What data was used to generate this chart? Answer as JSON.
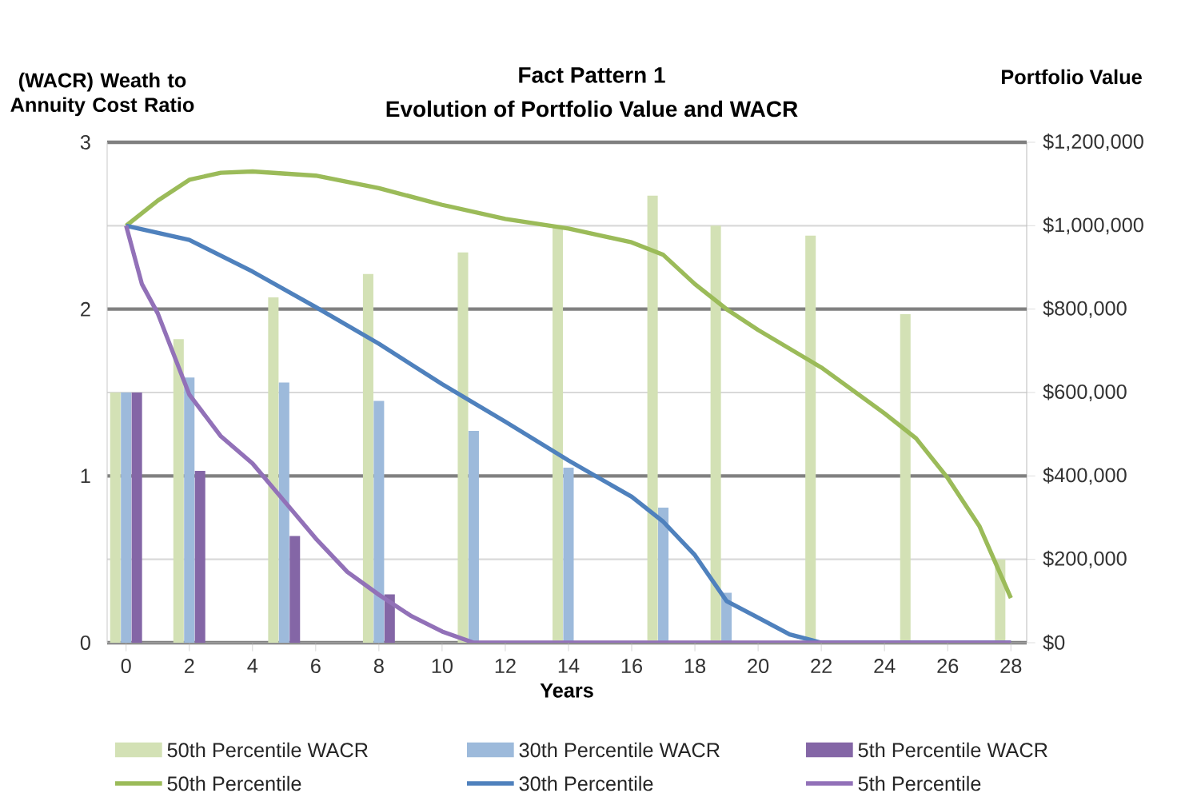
{
  "chart_data": {
    "type": "bar",
    "title": "Fact Pattern 1",
    "subtitle": "Evolution of Portfolio Value and WACR",
    "xlabel": "Years",
    "ylabel": "(WACR) Weath to Annuity Cost Ratio",
    "y2label": "Portfolio Value",
    "xlim": [
      -0.6,
      28.5
    ],
    "xticks": [
      0,
      2,
      4,
      6,
      8,
      10,
      12,
      14,
      16,
      18,
      20,
      22,
      24,
      26,
      28
    ],
    "ylim": [
      0,
      3
    ],
    "yticks": [
      0,
      1,
      2,
      3
    ],
    "y2lim": [
      0,
      1200000
    ],
    "y2ticks": [
      {
        "value": 0,
        "label": "$0"
      },
      {
        "value": 200000,
        "label": "$200,000"
      },
      {
        "value": 400000,
        "label": "$400,000"
      },
      {
        "value": 600000,
        "label": "$600,000"
      },
      {
        "value": 800000,
        "label": "$800,000"
      },
      {
        "value": 1000000,
        "label": "$1,000,000"
      },
      {
        "value": 1200000,
        "label": "$1,200,000"
      }
    ],
    "grid": true,
    "legend": "bottom",
    "series": [
      {
        "name": "50th Percentile WACR",
        "color": "#d3e1b5",
        "x": [
          0,
          2,
          5,
          8,
          11,
          14,
          17,
          19,
          22,
          25,
          28
        ],
        "values": [
          1.5,
          1.82,
          2.07,
          2.21,
          2.34,
          2.5,
          2.68,
          2.5,
          2.44,
          1.97,
          0.5
        ]
      },
      {
        "name": "30th Percentile WACR",
        "color": "#9dbadb",
        "x": [
          0,
          2,
          5,
          8,
          11,
          14,
          17,
          19
        ],
        "values": [
          1.5,
          1.59,
          1.56,
          1.45,
          1.27,
          1.05,
          0.81,
          0.3
        ]
      },
      {
        "name": "5th Percentile WACR",
        "color": "#8466a6",
        "x": [
          0,
          2,
          5,
          8
        ],
        "values": [
          1.5,
          1.03,
          0.64,
          0.29
        ]
      },
      {
        "name": "50th Percentile",
        "type": "line",
        "axis": "y2",
        "color": "#9bbb59",
        "x": [
          0,
          1,
          2,
          3,
          4,
          6,
          8,
          10,
          12,
          14,
          16,
          17,
          18,
          19,
          20,
          22,
          24,
          25,
          26,
          27,
          28
        ],
        "values": [
          1000000,
          1060000,
          1110000,
          1127000,
          1130000,
          1120000,
          1090000,
          1050000,
          1016000,
          993000,
          960000,
          930000,
          860000,
          800000,
          750000,
          660000,
          550000,
          490000,
          395000,
          280000,
          107000
        ]
      },
      {
        "name": "30th Percentile",
        "type": "line",
        "axis": "y2",
        "color": "#4f81bd",
        "x": [
          0,
          2,
          4,
          6,
          8,
          10,
          12,
          14,
          16,
          17,
          18,
          19,
          20,
          21,
          22,
          28
        ],
        "values": [
          1000000,
          966000,
          890000,
          805000,
          717000,
          620000,
          530000,
          437000,
          350000,
          290000,
          210000,
          100000,
          60000,
          20000,
          0,
          0
        ]
      },
      {
        "name": "5th Percentile",
        "type": "line",
        "axis": "y2",
        "color": "#9271b8",
        "x": [
          0,
          0.5,
          1,
          2,
          3,
          4,
          5,
          6,
          7,
          8,
          9,
          10,
          11,
          28
        ],
        "values": [
          1000000,
          860000,
          790000,
          595000,
          495000,
          430000,
          340000,
          250000,
          170000,
          115000,
          65000,
          27000,
          0,
          0
        ]
      }
    ]
  }
}
